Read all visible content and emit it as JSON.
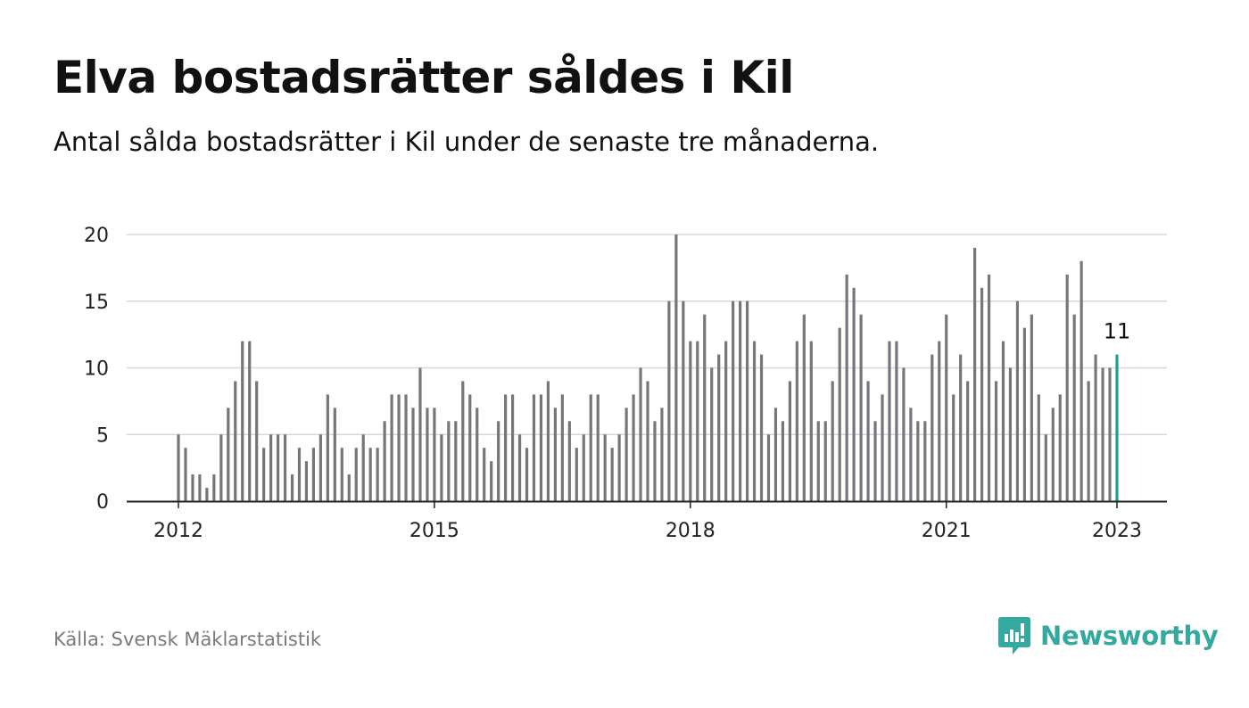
{
  "header": {
    "title": "Elva bostadsrätter såldes i Kil",
    "subtitle": "Antal sålda bostadsrätter i Kil under de senaste tre månaderna."
  },
  "footer": {
    "source": "Källa: Svensk Mäklarstatistik",
    "brand": "Newsworthy",
    "brand_icon": "newsworthy-logo-icon"
  },
  "colors": {
    "bar": "#77767a",
    "highlight": "#1f9e91",
    "grid": "#d8d8d8",
    "axis": "#222222",
    "brand": "#33a99f"
  },
  "chart_data": {
    "type": "bar",
    "x_unit": "month",
    "x_start": "2012-01",
    "x_end": "2023-01",
    "values": [
      5,
      4,
      2,
      2,
      1,
      2,
      5,
      7,
      9,
      12,
      12,
      9,
      4,
      5,
      5,
      5,
      2,
      4,
      3,
      4,
      5,
      8,
      7,
      4,
      2,
      4,
      5,
      4,
      4,
      6,
      8,
      8,
      8,
      7,
      10,
      7,
      7,
      5,
      6,
      6,
      9,
      8,
      7,
      4,
      3,
      6,
      8,
      8,
      5,
      4,
      8,
      8,
      9,
      7,
      8,
      6,
      4,
      5,
      8,
      8,
      5,
      4,
      5,
      7,
      8,
      10,
      9,
      6,
      7,
      15,
      20,
      15,
      12,
      12,
      14,
      10,
      11,
      12,
      15,
      15,
      15,
      12,
      11,
      5,
      7,
      6,
      9,
      12,
      14,
      12,
      6,
      6,
      9,
      13,
      17,
      16,
      14,
      9,
      6,
      8,
      12,
      12,
      10,
      7,
      6,
      6,
      11,
      12,
      14,
      8,
      11,
      9,
      19,
      16,
      17,
      9,
      12,
      10,
      15,
      13,
      14,
      8,
      5,
      7,
      8,
      17,
      14,
      18,
      9,
      11,
      10,
      10,
      11
    ],
    "ylim": [
      0,
      20
    ],
    "yticks": [
      "0",
      "5",
      "10",
      "15",
      "20"
    ],
    "xticks": [
      "2012",
      "2015",
      "2018",
      "2021",
      "2023"
    ],
    "highlight_label": "11",
    "grid": true,
    "legend": "none"
  }
}
